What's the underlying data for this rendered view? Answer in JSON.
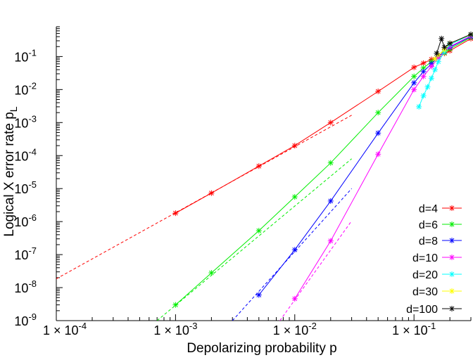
{
  "chart_data": {
    "type": "line",
    "xlabel": "Depolarizing probability p",
    "ylabel": "Logical X error rate p",
    "ylabel_sub": "L",
    "x_scale": "log",
    "y_scale": "log",
    "xlim": [
      0.0001,
      0.3
    ],
    "ylim": [
      1e-09,
      0.8
    ],
    "x_ticks": [
      {
        "value": 0.0001,
        "mant": "1",
        "times": "×",
        "base": "10",
        "exp": "-4"
      },
      {
        "value": 0.001,
        "mant": "1",
        "times": "×",
        "base": "10",
        "exp": "-3"
      },
      {
        "value": 0.01,
        "mant": "1",
        "times": "×",
        "base": "10",
        "exp": "-2"
      },
      {
        "value": 0.1,
        "mant": "1",
        "times": "×",
        "base": "10",
        "exp": "-1"
      }
    ],
    "y_ticks": [
      {
        "value": 1e-09,
        "base": "10",
        "exp": "-9"
      },
      {
        "value": 1e-08,
        "base": "10",
        "exp": "-8"
      },
      {
        "value": 1e-07,
        "base": "10",
        "exp": "-7"
      },
      {
        "value": 1e-06,
        "base": "10",
        "exp": "-6"
      },
      {
        "value": 1e-05,
        "base": "10",
        "exp": "-5"
      },
      {
        "value": 0.0001,
        "base": "10",
        "exp": "-4"
      },
      {
        "value": 0.001,
        "base": "10",
        "exp": "-3"
      },
      {
        "value": 0.01,
        "base": "10",
        "exp": "-2"
      },
      {
        "value": 0.1,
        "base": "10",
        "exp": "-1"
      }
    ],
    "legend_position": "bottom-right",
    "series": [
      {
        "name": "d=4",
        "color": "#ff0000",
        "x": [
          0.001,
          0.002,
          0.005,
          0.01,
          0.02,
          0.05,
          0.1,
          0.12,
          0.14,
          0.16,
          0.18,
          0.2,
          0.3
        ],
        "y": [
          1.8e-06,
          7.3e-06,
          4.8e-05,
          0.0002,
          0.001,
          0.0088,
          0.047,
          0.063,
          0.082,
          0.1,
          0.125,
          0.15,
          0.35
        ]
      },
      {
        "name": "d=6",
        "color": "#00ee00",
        "x": [
          0.001,
          0.002,
          0.005,
          0.01,
          0.02,
          0.05,
          0.1,
          0.12,
          0.14,
          0.16,
          0.18,
          0.2,
          0.3
        ],
        "y": [
          3e-09,
          2.8e-08,
          5.3e-07,
          5.6e-06,
          6e-05,
          0.002,
          0.025,
          0.045,
          0.07,
          0.1,
          0.13,
          0.17,
          0.38
        ]
      },
      {
        "name": "d=8",
        "color": "#0000ff",
        "x": [
          0.005,
          0.01,
          0.02,
          0.05,
          0.1,
          0.12,
          0.14,
          0.16,
          0.18,
          0.2,
          0.3
        ],
        "y": [
          6e-09,
          1.4e-07,
          4.2e-06,
          0.00048,
          0.016,
          0.035,
          0.06,
          0.1,
          0.14,
          0.19,
          0.4
        ]
      },
      {
        "name": "d=10",
        "color": "#ff00ff",
        "x": [
          0.01,
          0.02,
          0.05,
          0.1,
          0.12,
          0.14,
          0.16,
          0.18,
          0.2,
          0.3
        ],
        "y": [
          4.6e-09,
          2.6e-07,
          0.00011,
          0.01,
          0.025,
          0.05,
          0.09,
          0.14,
          0.2,
          0.42
        ]
      },
      {
        "name": "d=20",
        "color": "#00ffff",
        "x": [
          0.11,
          0.12,
          0.13,
          0.14,
          0.15,
          0.16,
          0.18,
          0.2,
          0.3
        ],
        "y": [
          0.003,
          0.0065,
          0.012,
          0.022,
          0.04,
          0.07,
          0.14,
          0.23,
          0.45
        ]
      },
      {
        "name": "d=30",
        "color": "#ffff00",
        "x": [
          0.15,
          0.16,
          0.18,
          0.2,
          0.3
        ],
        "y": [
          0.085,
          0.11,
          0.16,
          0.25,
          0.46
        ]
      },
      {
        "name": "d=100",
        "color": "#000000",
        "x": [
          0.155,
          0.17,
          0.18,
          0.2,
          0.3
        ],
        "y": [
          0.125,
          0.35,
          0.19,
          0.25,
          0.47
        ]
      }
    ],
    "asymptotes": [
      {
        "series": "d=4",
        "color": "#ff0000",
        "x": [
          0.0001,
          0.03
        ],
        "y": [
          1.85e-08,
          0.00167
        ]
      },
      {
        "series": "d=6",
        "color": "#00ee00",
        "x": [
          0.0007,
          0.03
        ],
        "y": [
          1e-09,
          8e-05
        ]
      },
      {
        "series": "d=8",
        "color": "#0000ff",
        "x": [
          0.003,
          0.03
        ],
        "y": [
          1e-09,
          1e-05
        ]
      },
      {
        "series": "d=10",
        "color": "#ff00ff",
        "x": [
          0.0075,
          0.03
        ],
        "y": [
          1e-09,
          1.05e-06
        ]
      }
    ]
  }
}
